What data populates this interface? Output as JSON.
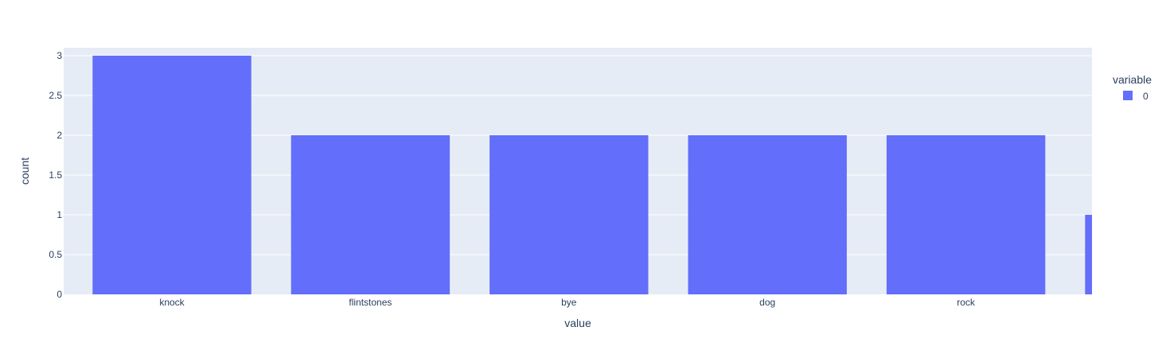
{
  "chart_data": {
    "type": "bar",
    "xlabel": "value",
    "ylabel": "count",
    "categories": [
      "knock",
      "flintstones",
      "bye",
      "dog",
      "rock",
      ""
    ],
    "series": [
      {
        "name": "0",
        "values": [
          3,
          2,
          2,
          2,
          2,
          1
        ]
      }
    ],
    "ylim": [
      0,
      3.1
    ],
    "yticks": [
      "0",
      "0.5",
      "1",
      "1.5",
      "2",
      "2.5",
      "3"
    ],
    "grid": true,
    "legend": {
      "title": "variable",
      "position": "top-right"
    },
    "colors": {
      "bar": "#636efa",
      "plot_background": "#e5ecf6",
      "gridline": "#ffffff",
      "text": "#2a3f5f"
    }
  }
}
